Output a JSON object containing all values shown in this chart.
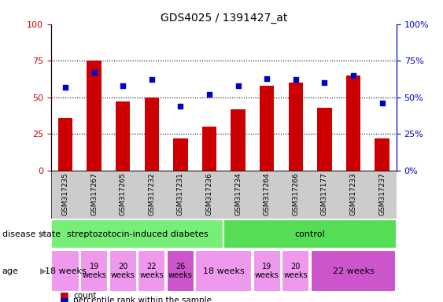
{
  "title": "GDS4025 / 1391427_at",
  "samples": [
    "GSM317235",
    "GSM317267",
    "GSM317265",
    "GSM317232",
    "GSM317231",
    "GSM317236",
    "GSM317234",
    "GSM317264",
    "GSM317266",
    "GSM317177",
    "GSM317233",
    "GSM317237"
  ],
  "counts": [
    36,
    75,
    47,
    50,
    22,
    30,
    42,
    58,
    60,
    43,
    65,
    22
  ],
  "percentiles": [
    57,
    67,
    58,
    62,
    44,
    52,
    58,
    63,
    62,
    60,
    65,
    46
  ],
  "bar_color": "#cc0000",
  "dot_color": "#0000cc",
  "ylim": [
    0,
    100
  ],
  "grid_lines": [
    25,
    50,
    75
  ],
  "left_axis_color": "#cc0000",
  "right_axis_color": "#0000cc",
  "xtick_bg_color": "#cccccc",
  "disease_groups": [
    {
      "label": "streptozotocin-induced diabetes",
      "start": 0,
      "end": 6,
      "color": "#77ee77"
    },
    {
      "label": "control",
      "start": 6,
      "end": 12,
      "color": "#55dd55"
    }
  ],
  "age_groups": [
    {
      "label": "18 weeks",
      "start": 0,
      "end": 1,
      "color": "#ee99ee",
      "fontsize": 8
    },
    {
      "label": "19\nweeks",
      "start": 1,
      "end": 2,
      "color": "#ee99ee",
      "fontsize": 7
    },
    {
      "label": "20\nweeks",
      "start": 2,
      "end": 3,
      "color": "#ee99ee",
      "fontsize": 7
    },
    {
      "label": "22\nweeks",
      "start": 3,
      "end": 4,
      "color": "#ee99ee",
      "fontsize": 7
    },
    {
      "label": "26\nweeks",
      "start": 4,
      "end": 5,
      "color": "#cc55cc",
      "fontsize": 7
    },
    {
      "label": "18 weeks",
      "start": 5,
      "end": 7,
      "color": "#ee99ee",
      "fontsize": 8
    },
    {
      "label": "19\nweeks",
      "start": 7,
      "end": 8,
      "color": "#ee99ee",
      "fontsize": 7
    },
    {
      "label": "20\nweeks",
      "start": 8,
      "end": 9,
      "color": "#ee99ee",
      "fontsize": 7
    },
    {
      "label": "22 weeks",
      "start": 9,
      "end": 12,
      "color": "#cc55cc",
      "fontsize": 8
    }
  ],
  "legend_items": [
    {
      "color": "#cc0000",
      "label": "count"
    },
    {
      "color": "#0000cc",
      "label": "percentile rank within the sample"
    }
  ]
}
